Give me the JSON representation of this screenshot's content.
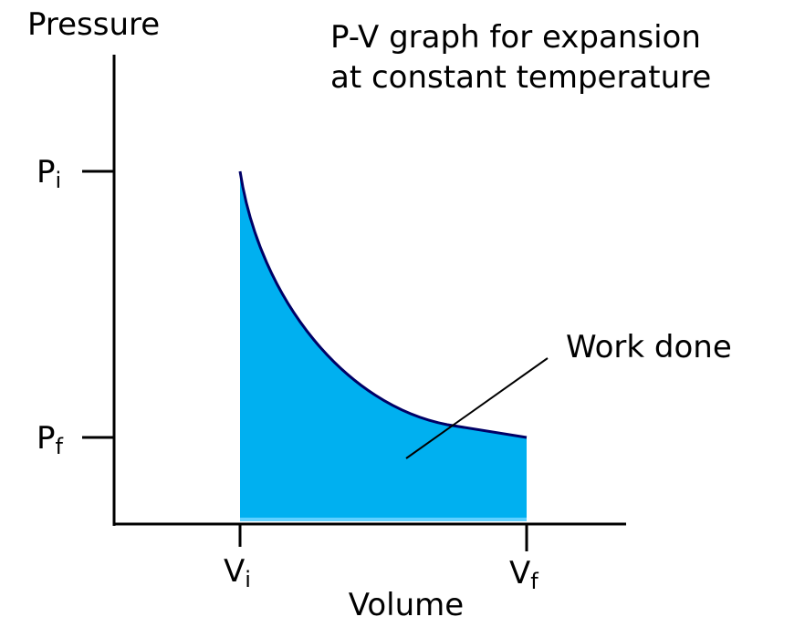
{
  "axes": {
    "y_label": "Pressure",
    "x_label": "Volume"
  },
  "title": {
    "line1": "P-V graph for expansion",
    "line2": "at constant temperature"
  },
  "ticks": {
    "p_initial": {
      "main": "P",
      "sub": "i"
    },
    "p_final": {
      "main": "P",
      "sub": "f"
    },
    "v_initial": {
      "main": "V",
      "sub": "i"
    },
    "v_final": {
      "main": "V",
      "sub": "f"
    }
  },
  "annotation": "Work done"
}
